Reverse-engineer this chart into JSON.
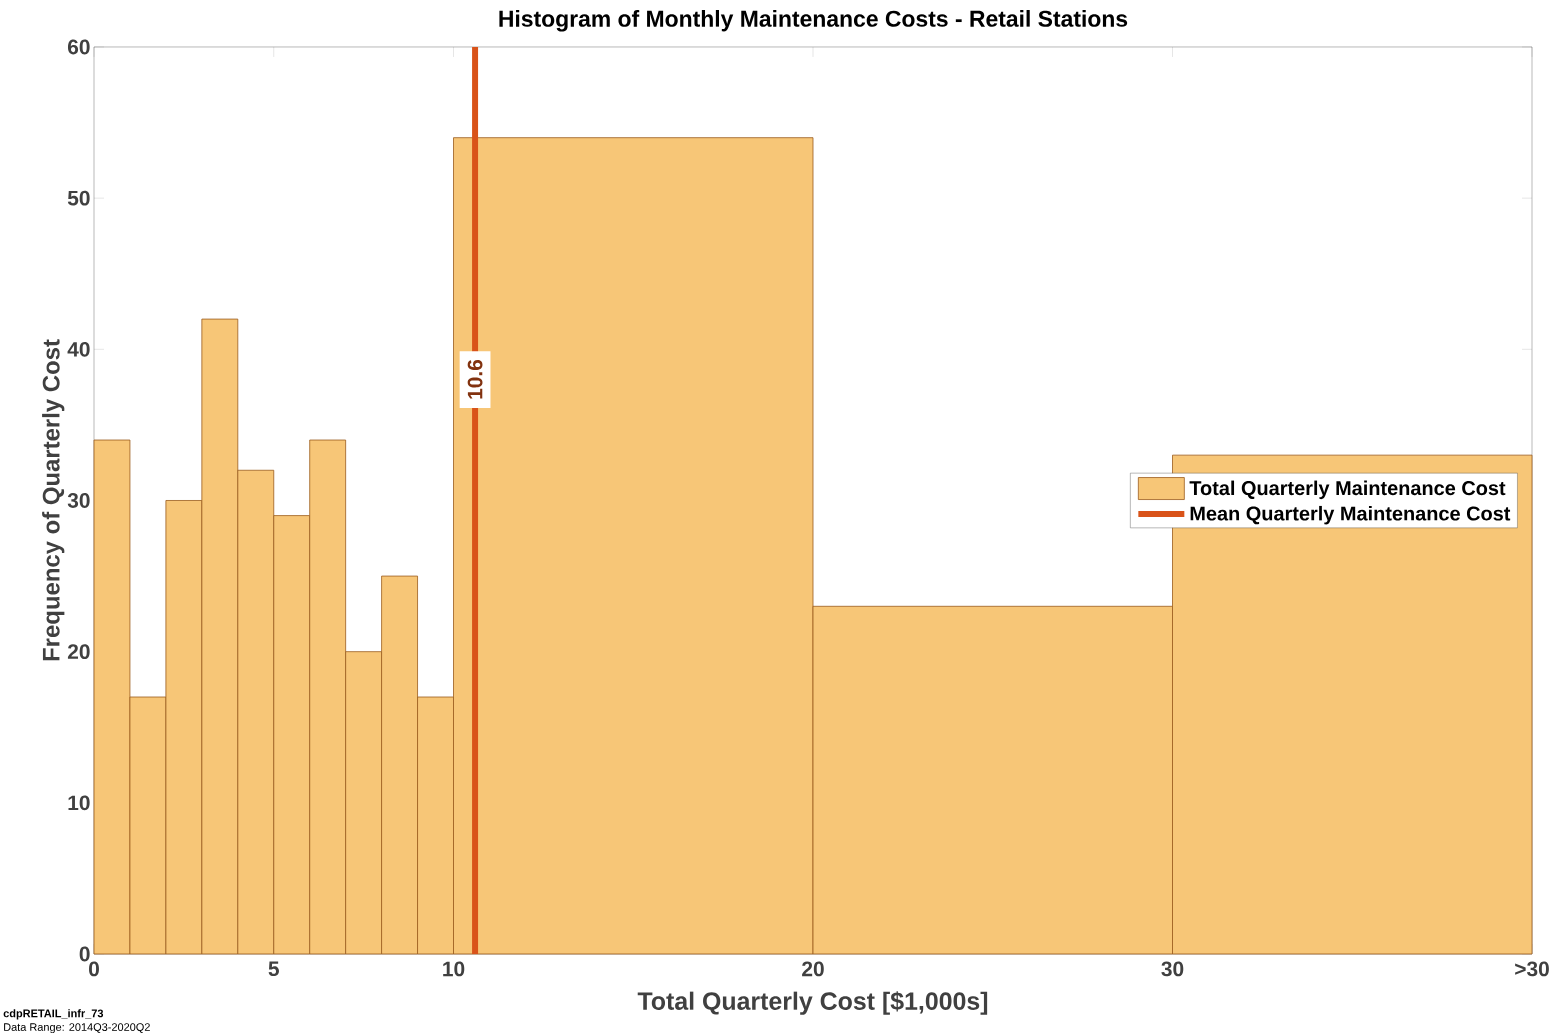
{
  "chart_data": {
    "type": "histogram",
    "title": "Histogram of Monthly Maintenance Costs - Retail Stations",
    "xlabel": "Total Quarterly Cost [$1,000s]",
    "ylabel": "Frequency of Quarterly Cost",
    "bins": [
      0,
      1,
      2,
      3,
      4,
      5,
      6,
      7,
      8,
      9,
      10,
      20,
      30,
      40
    ],
    "series": [
      {
        "name": "Total Quarterly Maintenance Cost",
        "color": "#f7c677",
        "values": [
          34,
          17,
          30,
          42,
          32,
          29,
          34,
          20,
          25,
          17,
          54,
          23,
          33
        ]
      },
      {
        "name": "Mean Quarterly Maintenance Cost",
        "type": "line",
        "color": "#d95319",
        "x": [
          10.6,
          10.6
        ],
        "values": [
          0,
          60
        ]
      }
    ],
    "xlim": [
      0,
      40
    ],
    "xticks": [
      0,
      5,
      10,
      20,
      30,
      {
        "value": 40,
        "label": ">30"
      }
    ],
    "ylim": [
      0,
      60
    ],
    "yticks": [
      0,
      10,
      20,
      30,
      40,
      50,
      60
    ],
    "annotations": [
      {
        "text": "10.6",
        "x": 10.6,
        "y": 38
      },
      "cdpRETAIL_infr_73",
      "Data Range: 2014Q3-2020Q2"
    ],
    "legend": "right"
  }
}
